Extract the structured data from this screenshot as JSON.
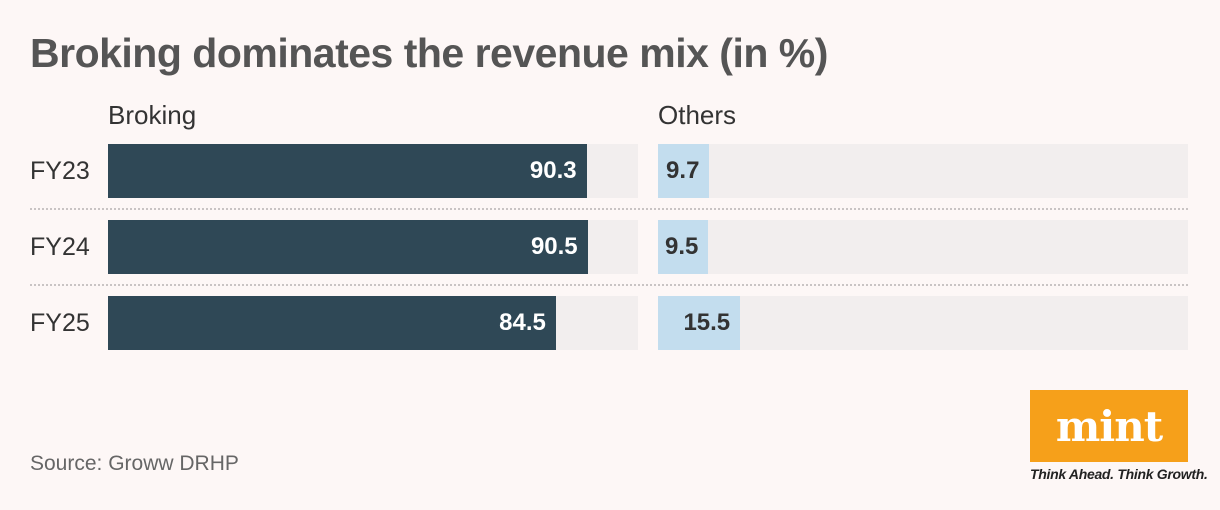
{
  "chart_data": {
    "type": "bar",
    "title": "Broking dominates the revenue mix (in %)",
    "categories": [
      "FY23",
      "FY24",
      "FY25"
    ],
    "series": [
      {
        "name": "Broking",
        "values": [
          90.3,
          90.5,
          84.5
        ],
        "color": "#2f4856",
        "label_color": "#ffffff"
      },
      {
        "name": "Others",
        "values": [
          9.7,
          9.5,
          15.5
        ],
        "color": "#c3ddee",
        "label_color": "#333333"
      }
    ],
    "xlim": [
      0,
      100
    ],
    "grid": false,
    "colors": {
      "track": "#f2eeee",
      "background": "#fdf7f6"
    }
  },
  "source": "Source: Groww DRHP",
  "logo": {
    "text": "mint",
    "tagline": "Think Ahead. Think Growth.",
    "color": "#f6a01a"
  }
}
